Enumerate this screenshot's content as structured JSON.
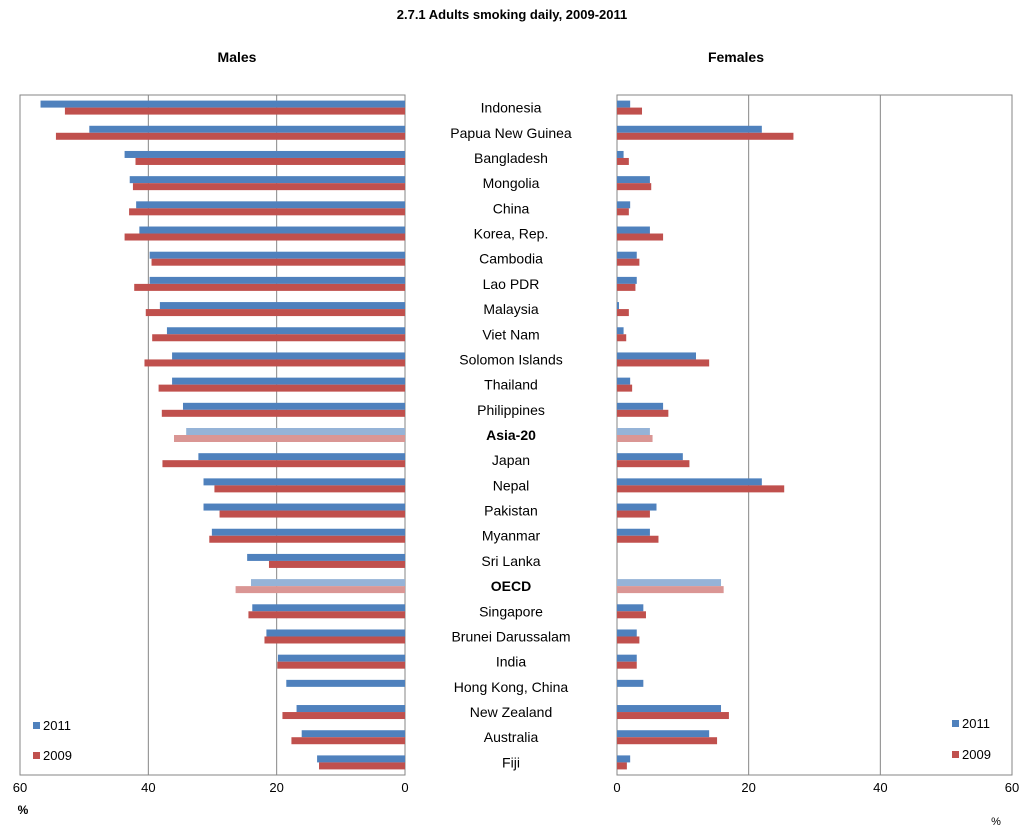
{
  "chart_data": {
    "type": "bar",
    "title": "2.7.1 Adults smoking daily, 2009-2011",
    "categories": [
      "Indonesia",
      "Papua New Guinea",
      "Bangladesh",
      "Mongolia",
      "China",
      "Korea, Rep.",
      "Cambodia",
      "Lao PDR",
      "Malaysia",
      "Viet Nam",
      "Solomon Islands",
      "Thailand",
      "Philippines",
      "Asia-20",
      "Japan",
      "Nepal",
      "Pakistan",
      "Myanmar",
      "Sri Lanka",
      "OECD",
      "Singapore",
      "Brunei Darussalam",
      "India",
      "Hong Kong, China",
      "New Zealand",
      "Australia",
      "Fiji"
    ],
    "highlighted_categories": [
      "Asia-20",
      "OECD"
    ],
    "panels": [
      {
        "title": "Males",
        "direction": "reversed",
        "xlim": [
          0,
          60
        ],
        "ticks": [
          60,
          40,
          20,
          0
        ],
        "unit_label": "%",
        "series": [
          {
            "name": "2011",
            "color": "#4f81bd",
            "highlight_color": "#95b3d7",
            "values": [
              56.8,
              49.2,
              43.7,
              42.9,
              41.9,
              41.4,
              39.8,
              39.8,
              38.2,
              37.1,
              36.3,
              36.3,
              34.6,
              34.1,
              32.2,
              31.4,
              31.4,
              30.1,
              24.6,
              24.0,
              23.8,
              21.6,
              19.8,
              18.5,
              16.9,
              16.1,
              13.7
            ]
          },
          {
            "name": "2009",
            "color": "#c0504d",
            "highlight_color": "#da9694",
            "values": [
              53.0,
              54.4,
              42.0,
              42.4,
              43.0,
              43.7,
              39.5,
              42.2,
              40.4,
              39.4,
              40.6,
              38.4,
              37.9,
              36.0,
              37.8,
              29.7,
              28.9,
              30.5,
              21.2,
              26.4,
              24.4,
              21.9,
              19.9,
              null,
              19.1,
              17.7,
              13.4
            ]
          }
        ]
      },
      {
        "title": "Females",
        "direction": "normal",
        "xlim": [
          0,
          60
        ],
        "ticks": [
          0,
          20,
          40,
          60
        ],
        "unit_label": "%",
        "series": [
          {
            "name": "2011",
            "color": "#4f81bd",
            "highlight_color": "#95b3d7",
            "values": [
              2.0,
              22.0,
              1.0,
              5.0,
              2.0,
              5.0,
              3.0,
              3.0,
              0.3,
              1.0,
              12.0,
              2.0,
              7.0,
              5.0,
              10.0,
              22.0,
              6.0,
              5.0,
              null,
              15.8,
              4.0,
              3.0,
              3.0,
              4.0,
              15.8,
              14.0,
              2.0
            ]
          },
          {
            "name": "2009",
            "color": "#c0504d",
            "highlight_color": "#da9694",
            "values": [
              3.8,
              26.8,
              1.8,
              5.2,
              1.8,
              7.0,
              3.4,
              2.8,
              1.8,
              1.4,
              14.0,
              2.3,
              7.8,
              5.4,
              11.0,
              25.4,
              5.0,
              6.3,
              null,
              16.2,
              4.4,
              3.4,
              3.0,
              null,
              17.0,
              15.2,
              1.5
            ]
          }
        ]
      }
    ],
    "legend": [
      {
        "label": "2011",
        "color": "#4f81bd"
      },
      {
        "label": "2009",
        "color": "#c0504d"
      }
    ],
    "legend_placement": "bottom-left (males), bottom-right (females)",
    "gridlines": "vertical"
  }
}
